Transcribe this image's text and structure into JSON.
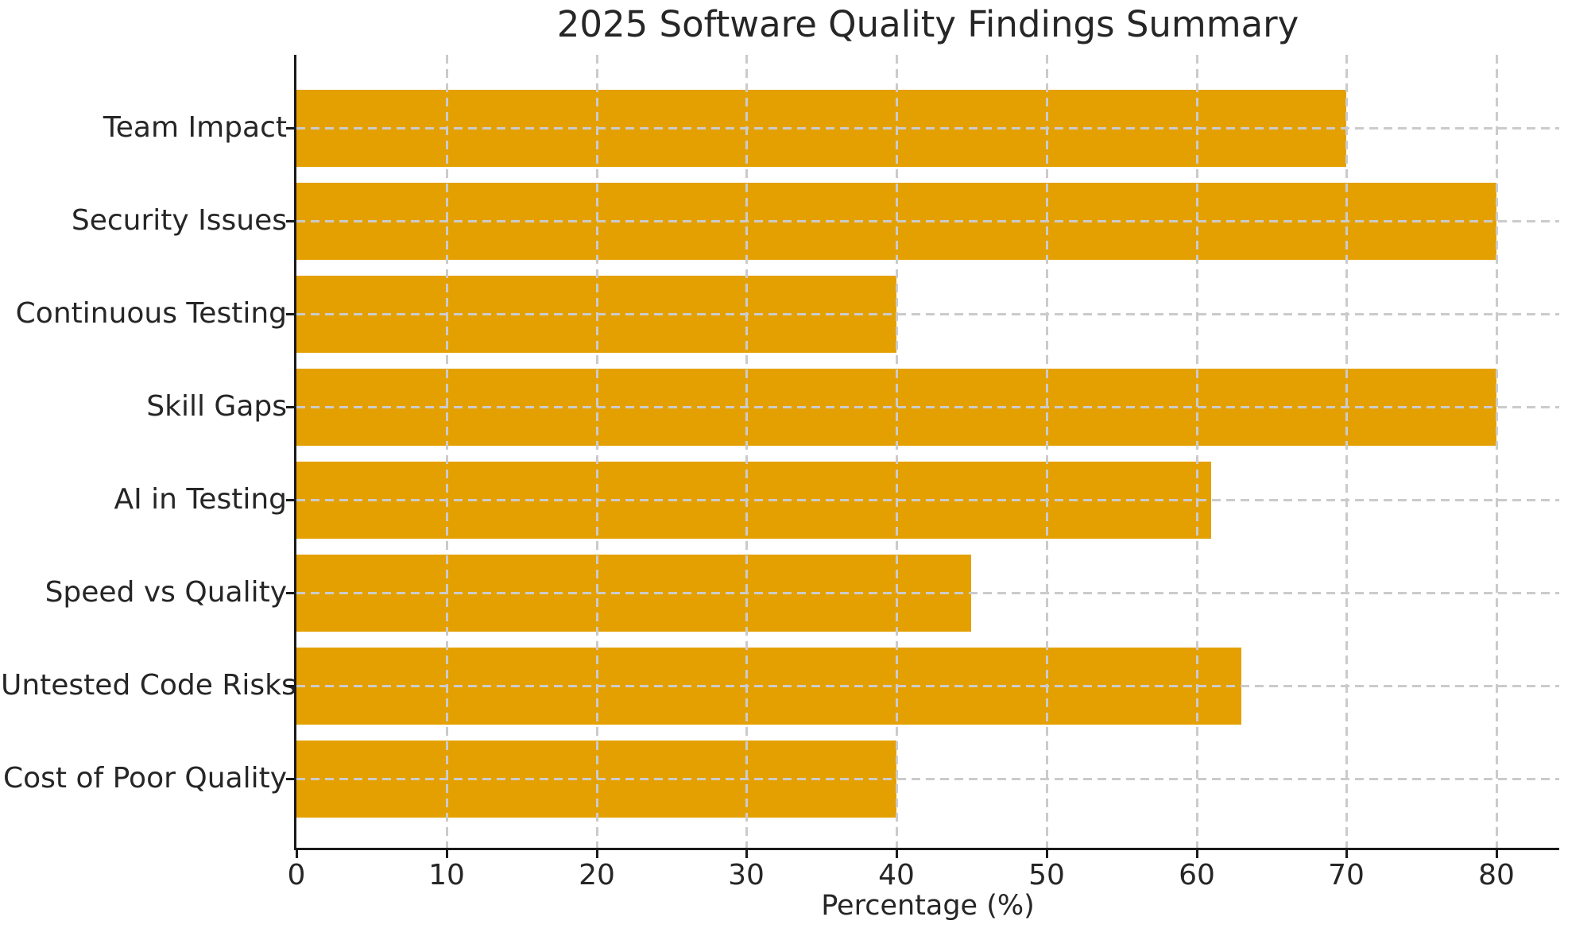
{
  "chart_data": {
    "type": "bar",
    "orientation": "horizontal",
    "title": "2025 Software Quality Findings Summary",
    "xlabel": "Percentage (%)",
    "categories": [
      "Team Impact",
      "Security Issues",
      "Continuous Testing",
      "Skill Gaps",
      "AI in Testing",
      "Speed vs Quality",
      "Untested Code Risks",
      "Cost of Poor Quality"
    ],
    "values": [
      70,
      80,
      40,
      80,
      61,
      45,
      63,
      40
    ],
    "xticks": [
      0,
      10,
      20,
      30,
      40,
      50,
      60,
      70,
      80
    ],
    "xlim": [
      0,
      84.2
    ],
    "bar_color": "#E4A000",
    "grid": "dashed, both axes, drawn over bars",
    "gridline_color": "#cbcbcb",
    "axis_color": "#1a1a1a",
    "text_color": "#262626",
    "legend": "none",
    "background": "#ffffff"
  }
}
